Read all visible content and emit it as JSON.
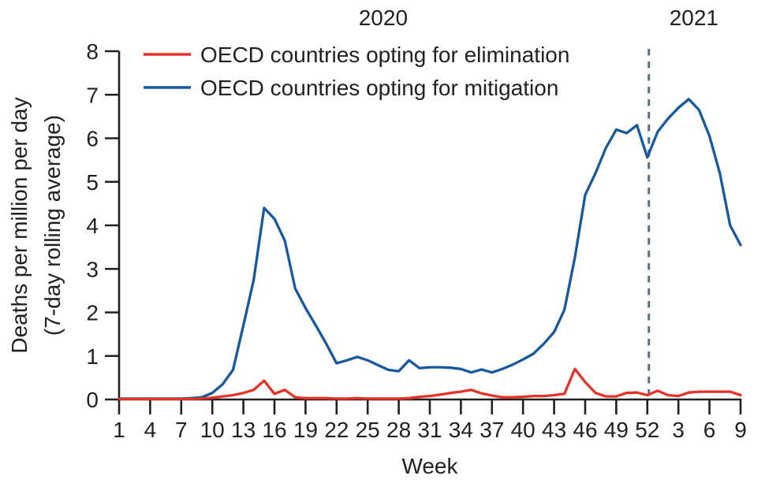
{
  "chart_data": {
    "type": "line",
    "title": "",
    "xlabel": "Week",
    "ylabel_line1": "Deaths per million per day",
    "ylabel_line2": "(7-day rolling average)",
    "axis_color": "#231f20",
    "divider_color": "#53707f",
    "divider_week": 52.15,
    "ylim": [
      0,
      8
    ],
    "yticks": [
      0,
      1,
      2,
      3,
      4,
      5,
      6,
      7,
      8
    ],
    "xticks": [
      {
        "week": 1,
        "label": "1"
      },
      {
        "week": 4,
        "label": "4"
      },
      {
        "week": 7,
        "label": "7"
      },
      {
        "week": 10,
        "label": "10"
      },
      {
        "week": 13,
        "label": "13"
      },
      {
        "week": 16,
        "label": "16"
      },
      {
        "week": 19,
        "label": "19"
      },
      {
        "week": 22,
        "label": "22"
      },
      {
        "week": 25,
        "label": "25"
      },
      {
        "week": 28,
        "label": "28"
      },
      {
        "week": 31,
        "label": "31"
      },
      {
        "week": 34,
        "label": "34"
      },
      {
        "week": 37,
        "label": "37"
      },
      {
        "week": 40,
        "label": "40"
      },
      {
        "week": 43,
        "label": "43"
      },
      {
        "week": 46,
        "label": "46"
      },
      {
        "week": 49,
        "label": "49"
      },
      {
        "week": 52,
        "label": "52"
      },
      {
        "week": 55,
        "label": "3"
      },
      {
        "week": 58,
        "label": "6"
      },
      {
        "week": 61,
        "label": "9"
      }
    ],
    "year_labels": [
      {
        "text": "2020",
        "week_start": 1,
        "week_end": 52
      },
      {
        "text": "2021",
        "week_start": 52,
        "week_end": 61
      }
    ],
    "x_weeks_start": 1,
    "x_weeks_end": 61,
    "legend_position": "top-left",
    "grid": "off",
    "series": [
      {
        "name": "OECD countries opting for elimination",
        "color": "#e73227",
        "values": [
          0.01,
          0.01,
          0.01,
          0.01,
          0.01,
          0.01,
          0.01,
          0.01,
          0.02,
          0.04,
          0.07,
          0.1,
          0.15,
          0.22,
          0.43,
          0.13,
          0.22,
          0.05,
          0.03,
          0.03,
          0.03,
          0.02,
          0.02,
          0.03,
          0.02,
          0.02,
          0.02,
          0.02,
          0.03,
          0.06,
          0.08,
          0.11,
          0.15,
          0.18,
          0.22,
          0.14,
          0.09,
          0.05,
          0.05,
          0.06,
          0.08,
          0.08,
          0.1,
          0.13,
          0.7,
          0.4,
          0.15,
          0.07,
          0.07,
          0.15,
          0.16,
          0.1,
          0.2,
          0.1,
          0.08,
          0.16,
          0.18,
          0.18,
          0.18,
          0.18,
          0.1
        ]
      },
      {
        "name": "OECD countries opting for mitigation",
        "color": "#17599f",
        "values": [
          0.02,
          0.02,
          0.02,
          0.02,
          0.02,
          0.02,
          0.02,
          0.03,
          0.05,
          0.15,
          0.35,
          0.68,
          1.7,
          2.75,
          4.4,
          4.15,
          3.65,
          2.55,
          2.1,
          1.7,
          1.28,
          0.83,
          0.9,
          0.98,
          0.9,
          0.79,
          0.68,
          0.65,
          0.9,
          0.72,
          0.74,
          0.74,
          0.73,
          0.7,
          0.62,
          0.69,
          0.62,
          0.7,
          0.8,
          0.92,
          1.05,
          1.28,
          1.55,
          2.06,
          3.26,
          4.7,
          5.2,
          5.78,
          6.2,
          6.12,
          6.3,
          5.56,
          6.15,
          6.45,
          6.7,
          6.9,
          6.65,
          6.05,
          5.2,
          4.0,
          3.55
        ]
      }
    ]
  }
}
